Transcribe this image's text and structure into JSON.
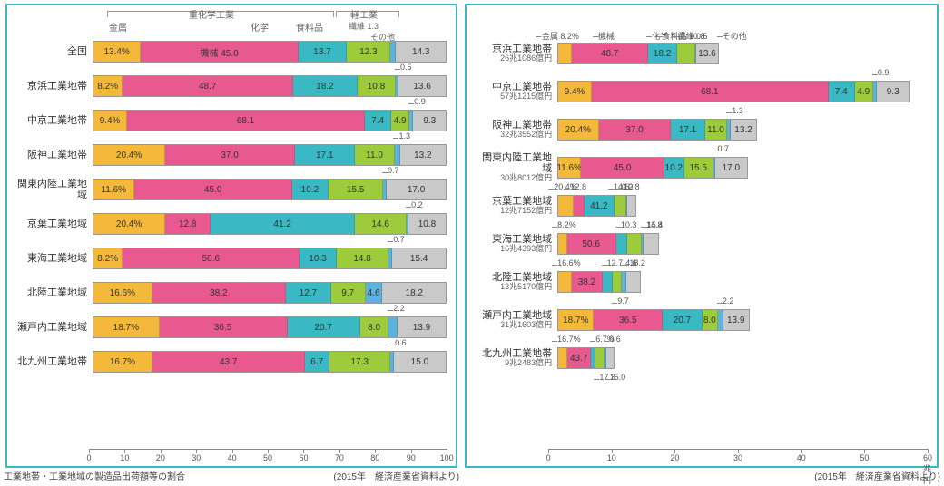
{
  "colors": {
    "metal": "#f4b93a",
    "machinery": "#e85a8f",
    "chemical": "#3ab8c4",
    "food": "#9ccc3c",
    "textile": "#5bb3e0",
    "other": "#c9c9c9",
    "border": "#999999",
    "frame": "#3ab8c4"
  },
  "categoryLabels": {
    "metal": "金属",
    "machinery": "機械",
    "chemical": "化学",
    "food": "食料品",
    "textile": "繊維",
    "other": "その他",
    "heavy": "重化学工業",
    "light": "軽工業"
  },
  "leftChart": {
    "axisMax": 100,
    "axisTicks": [
      0,
      10,
      20,
      30,
      40,
      50,
      60,
      70,
      80,
      90,
      100
    ],
    "caption": "工業地帯・工業地域の製造品出荷額等の割合",
    "source": "(2015年　経済産業省資料より)",
    "textileCallout": "繊維 1.3",
    "rows": [
      {
        "label": "全国",
        "vals": {
          "metal": 13.4,
          "machinery": 45.0,
          "chemical": 13.7,
          "food": 12.3,
          "textile": 1.3,
          "other": 14.3
        },
        "metalLabel": "13.4%",
        "machLabel": "機械 45.0",
        "hideTextile": true
      },
      {
        "label": "京浜工業地帯",
        "vals": {
          "metal": 8.2,
          "machinery": 48.7,
          "chemical": 18.2,
          "food": 10.8,
          "textile": 0.5,
          "other": 13.6
        },
        "topCall": "0.5",
        "hideTextile": true
      },
      {
        "label": "中京工業地帯",
        "vals": {
          "metal": 9.4,
          "machinery": 68.1,
          "chemical": 7.4,
          "food": 4.9,
          "textile": 0.9,
          "other": 9.3
        },
        "topCall": "0.9",
        "hideTextile": true
      },
      {
        "label": "阪神工業地帯",
        "vals": {
          "metal": 20.4,
          "machinery": 37.0,
          "chemical": 17.1,
          "food": 11.0,
          "textile": 1.3,
          "other": 13.2
        },
        "topCall": "1.3",
        "hideTextile": true
      },
      {
        "label": "関東内陸工業地域",
        "vals": {
          "metal": 11.6,
          "machinery": 45.0,
          "chemical": 10.2,
          "food": 15.5,
          "textile": 0.7,
          "other": 17.0
        },
        "topCall": "0.7",
        "hideTextile": true
      },
      {
        "label": "京葉工業地域",
        "vals": {
          "metal": 20.4,
          "machinery": 12.8,
          "chemical": 41.2,
          "food": 14.6,
          "textile": 0.2,
          "other": 10.8
        },
        "topCall": "0.2",
        "hideTextile": true
      },
      {
        "label": "東海工業地域",
        "vals": {
          "metal": 8.2,
          "machinery": 50.6,
          "chemical": 10.3,
          "food": 14.8,
          "textile": 0.7,
          "other": 15.4
        },
        "topCall": "0.7",
        "hideTextile": true
      },
      {
        "label": "北陸工業地域",
        "vals": {
          "metal": 16.6,
          "machinery": 38.2,
          "chemical": 12.7,
          "food": 9.7,
          "textile": 4.6,
          "other": 18.2
        }
      },
      {
        "label": "瀬戸内工業地域",
        "vals": {
          "metal": 18.7,
          "machinery": 36.5,
          "chemical": 20.7,
          "food": 8.0,
          "textile": 2.2,
          "other": 13.9
        },
        "topCall": "2.2",
        "hideTextile": true
      },
      {
        "label": "北九州工業地帯",
        "vals": {
          "metal": 16.7,
          "machinery": 43.7,
          "chemical": 6.7,
          "food": 17.3,
          "textile": 0.6,
          "other": 15.0
        },
        "topCall": "0.6",
        "hideTextile": true
      }
    ]
  },
  "rightChart": {
    "axisMax": 60,
    "axisUnit": "60兆円",
    "axisTicks": [
      0,
      10,
      20,
      30,
      40,
      50
    ],
    "source": "(2015年　経済産業省資料より)",
    "rows": [
      {
        "label": "京浜工業地帯",
        "sub": "26兆1086億円",
        "total": 26.1086,
        "vals": {
          "metal": 8.2,
          "machinery": 48.7,
          "chemical": 18.2,
          "food": 10.8,
          "textile": 0.5,
          "other": 13.6
        },
        "metalTop": "金属 8.2%",
        "topLabels": {
          "machinery": "機械",
          "chemical": "化学",
          "food": "食料品 10.8",
          "textile": "繊維 0.5",
          "other": "その他"
        },
        "hideTextile": true,
        "hideFood": true
      },
      {
        "label": "中京工業地帯",
        "sub": "57兆1215億円",
        "total": 57.1215,
        "vals": {
          "metal": 9.4,
          "machinery": 68.1,
          "chemical": 7.4,
          "food": 4.9,
          "textile": 0.9,
          "other": 9.3
        },
        "metalLabel": "9.4%",
        "topCall": "0.9",
        "hideTextile": true
      },
      {
        "label": "阪神工業地帯",
        "sub": "32兆3552億円",
        "total": 32.3552,
        "vals": {
          "metal": 20.4,
          "machinery": 37.0,
          "chemical": 17.1,
          "food": 11.0,
          "textile": 1.3,
          "other": 13.2
        },
        "metalLabel": "20.4%",
        "topCall": "1.3",
        "hideTextile": true
      },
      {
        "label": "関東内陸工業地域",
        "sub": "30兆8012億円",
        "total": 30.8012,
        "vals": {
          "metal": 11.6,
          "machinery": 45.0,
          "chemical": 10.2,
          "food": 15.5,
          "textile": 0.7,
          "other": 17.0
        },
        "metalLabel": "11.6%",
        "topCall": "0.7",
        "hideTextile": true
      },
      {
        "label": "京葉工業地域",
        "sub": "12兆7152億円",
        "total": 12.7152,
        "vals": {
          "metal": 20.4,
          "machinery": 12.8,
          "chemical": 41.2,
          "food": 14.6,
          "textile": 0.2,
          "other": 10.8
        },
        "topNums": [
          "20.4%",
          "12.8",
          "14.6",
          "0.2",
          "10.8"
        ],
        "hideAll": true,
        "showChem": "41.2"
      },
      {
        "label": "東海工業地域",
        "sub": "16兆4393億円",
        "total": 16.4393,
        "vals": {
          "metal": 8.2,
          "machinery": 50.6,
          "chemical": 10.3,
          "food": 14.8,
          "textile": 0.7,
          "other": 15.4
        },
        "metalTop": "8.2%",
        "topNums2": [
          "10.3",
          "14.8",
          "15.4"
        ],
        "hideMost": true,
        "showMach": "50.6"
      },
      {
        "label": "北陸工業地域",
        "sub": "13兆5170億円",
        "total": 13.517,
        "vals": {
          "metal": 16.6,
          "machinery": 38.2,
          "chemical": 12.7,
          "food": 9.7,
          "textile": 4.6,
          "other": 18.2
        },
        "metalTop": "16.6%",
        "topNums2": [
          "12.7",
          "4.6",
          "18.2"
        ],
        "belowNum": "9.7",
        "hideMost": true,
        "showMach": "38.2"
      },
      {
        "label": "瀬戸内工業地域",
        "sub": "31兆1603億円",
        "total": 31.1603,
        "vals": {
          "metal": 18.7,
          "machinery": 36.5,
          "chemical": 20.7,
          "food": 8.0,
          "textile": 2.2,
          "other": 13.9
        },
        "metalLabel": "18.7%",
        "topCall": "2.2",
        "hideTextile": true
      },
      {
        "label": "北九州工業地帯",
        "sub": "9兆2483億円",
        "total": 9.2483,
        "vals": {
          "metal": 16.7,
          "machinery": 43.7,
          "chemical": 6.7,
          "food": 17.3,
          "textile": 0.6,
          "other": 15.0
        },
        "metalTop": "16.7%",
        "topNums2": [
          "6.7%",
          "0.6"
        ],
        "belowNums": [
          "17.3",
          "15.0"
        ],
        "hideMost": true,
        "showMach": "43.7"
      }
    ]
  }
}
